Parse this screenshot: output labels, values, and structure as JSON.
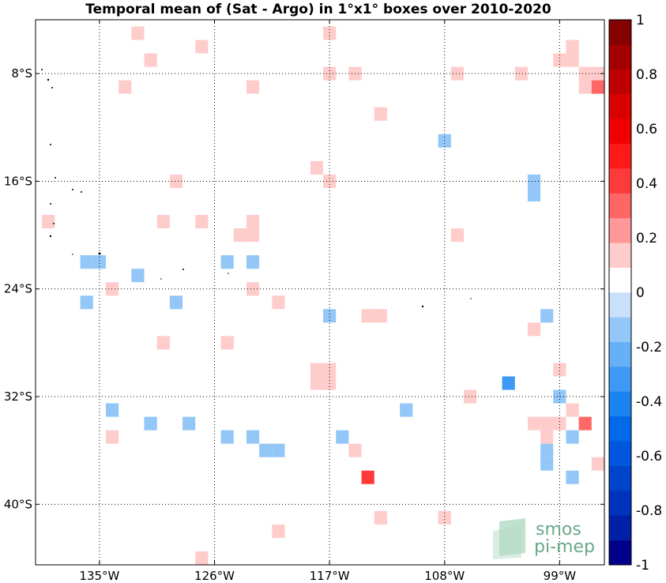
{
  "chart_data": {
    "type": "heatmap",
    "title": "Temporal mean of (Sat - Argo) in 1°x1° boxes over 2010-2020",
    "x_ticks": [
      {
        "value": -135,
        "label": "135°W"
      },
      {
        "value": -126,
        "label": "126°W"
      },
      {
        "value": -117,
        "label": "117°W"
      },
      {
        "value": -108,
        "label": "108°W"
      },
      {
        "value": -99,
        "label": "99°W"
      }
    ],
    "y_ticks": [
      {
        "value": -8,
        "label": "8°S"
      },
      {
        "value": -16,
        "label": "16°S"
      },
      {
        "value": -24,
        "label": "24°S"
      },
      {
        "value": -32,
        "label": "32°S"
      },
      {
        "value": -40,
        "label": "40°S"
      }
    ],
    "xlim": [
      -140,
      -95.5
    ],
    "ylim": [
      -44.5,
      -4
    ],
    "grid": true,
    "colorbar": {
      "range": [
        -1,
        1
      ],
      "ticks": [
        {
          "value": 1,
          "label": "1"
        },
        {
          "value": 0.8,
          "label": "0.8"
        },
        {
          "value": 0.6,
          "label": "0.6"
        },
        {
          "value": 0.4,
          "label": "0.4"
        },
        {
          "value": 0.2,
          "label": "0.2"
        },
        {
          "value": 0,
          "label": "0"
        },
        {
          "value": -0.2,
          "label": "-0.2"
        },
        {
          "value": -0.4,
          "label": "-0.4"
        },
        {
          "value": -0.6,
          "label": "-0.6"
        },
        {
          "value": -0.8,
          "label": "-0.8"
        },
        {
          "value": -1,
          "label": "-1"
        }
      ],
      "colors": [
        "#00008b",
        "#0020a6",
        "#0033bb",
        "#0044cc",
        "#0057dd",
        "#006ae8",
        "#1a84f0",
        "#3d99f5",
        "#66b0f7",
        "#93c7f7",
        "#c8e0f9",
        "#ffffff",
        "#ffcccc",
        "#ff9999",
        "#ff6666",
        "#ff3a3a",
        "#ff1a1a",
        "#f00000",
        "#d90000",
        "#bf0000",
        "#a30000",
        "#850000"
      ]
    },
    "cells": [
      {
        "lon": -132,
        "lat": -5,
        "value": 0.15
      },
      {
        "lon": -127,
        "lat": -6,
        "value": 0.15
      },
      {
        "lon": -117,
        "lat": -5,
        "value": 0.15
      },
      {
        "lon": -131,
        "lat": -7,
        "value": 0.15
      },
      {
        "lon": -98,
        "lat": -6,
        "value": 0.15
      },
      {
        "lon": -99,
        "lat": -7,
        "value": 0.15
      },
      {
        "lon": -98,
        "lat": -7,
        "value": 0.15
      },
      {
        "lon": -133,
        "lat": -9,
        "value": 0.15
      },
      {
        "lon": -123,
        "lat": -9,
        "value": 0.15
      },
      {
        "lon": -117,
        "lat": -8,
        "value": 0.15
      },
      {
        "lon": -115,
        "lat": -8,
        "value": 0.15
      },
      {
        "lon": -107,
        "lat": -8,
        "value": 0.15
      },
      {
        "lon": -102,
        "lat": -8,
        "value": 0.15
      },
      {
        "lon": -96,
        "lat": -8,
        "value": 0.15
      },
      {
        "lon": -97,
        "lat": -8,
        "value": 0.15
      },
      {
        "lon": -97,
        "lat": -9,
        "value": 0.15
      },
      {
        "lon": -96,
        "lat": -9,
        "value": 0.3
      },
      {
        "lon": -113,
        "lat": -11,
        "value": 0.15
      },
      {
        "lon": -108,
        "lat": -13,
        "value": -0.15
      },
      {
        "lon": -118,
        "lat": -15,
        "value": 0.15
      },
      {
        "lon": -117,
        "lat": -16,
        "value": 0.15
      },
      {
        "lon": -129,
        "lat": -16,
        "value": 0.15
      },
      {
        "lon": -101,
        "lat": -16,
        "value": -0.15
      },
      {
        "lon": -101,
        "lat": -17,
        "value": -0.15
      },
      {
        "lon": -139,
        "lat": -19,
        "value": 0.15
      },
      {
        "lon": -130,
        "lat": -19,
        "value": 0.15
      },
      {
        "lon": -127,
        "lat": -19,
        "value": 0.15
      },
      {
        "lon": -123,
        "lat": -19,
        "value": 0.15
      },
      {
        "lon": -124,
        "lat": -20,
        "value": 0.15
      },
      {
        "lon": -123,
        "lat": -20,
        "value": 0.15
      },
      {
        "lon": -107,
        "lat": -20,
        "value": 0.15
      },
      {
        "lon": -136,
        "lat": -22,
        "value": -0.15
      },
      {
        "lon": -135,
        "lat": -22,
        "value": -0.15
      },
      {
        "lon": -125,
        "lat": -22,
        "value": -0.15
      },
      {
        "lon": -123,
        "lat": -22,
        "value": -0.15
      },
      {
        "lon": -132,
        "lat": -23,
        "value": -0.15
      },
      {
        "lon": -134,
        "lat": -24,
        "value": 0.15
      },
      {
        "lon": -123,
        "lat": -24,
        "value": 0.15
      },
      {
        "lon": -136,
        "lat": -25,
        "value": -0.15
      },
      {
        "lon": -129,
        "lat": -25,
        "value": -0.15
      },
      {
        "lon": -121,
        "lat": -25,
        "value": 0.15
      },
      {
        "lon": -117,
        "lat": -26,
        "value": -0.15
      },
      {
        "lon": -114,
        "lat": -26,
        "value": 0.15
      },
      {
        "lon": -113,
        "lat": -26,
        "value": 0.15
      },
      {
        "lon": -100,
        "lat": -26,
        "value": -0.15
      },
      {
        "lon": -101,
        "lat": -27,
        "value": 0.15
      },
      {
        "lon": -130,
        "lat": -28,
        "value": 0.15
      },
      {
        "lon": -125,
        "lat": -28,
        "value": 0.15
      },
      {
        "lon": -118,
        "lat": -30,
        "value": 0.15
      },
      {
        "lon": -117,
        "lat": -30,
        "value": 0.15
      },
      {
        "lon": -118,
        "lat": -31,
        "value": 0.15
      },
      {
        "lon": -117,
        "lat": -31,
        "value": 0.15
      },
      {
        "lon": -99,
        "lat": -30,
        "value": 0.15
      },
      {
        "lon": -103,
        "lat": -31,
        "value": -0.35
      },
      {
        "lon": -99,
        "lat": -32,
        "value": -0.15
      },
      {
        "lon": -106,
        "lat": -32,
        "value": 0.15
      },
      {
        "lon": -134,
        "lat": -33,
        "value": -0.15
      },
      {
        "lon": -111,
        "lat": -33,
        "value": -0.15
      },
      {
        "lon": -98,
        "lat": -33,
        "value": 0.15
      },
      {
        "lon": -131,
        "lat": -34,
        "value": -0.15
      },
      {
        "lon": -128,
        "lat": -34,
        "value": -0.15
      },
      {
        "lon": -101,
        "lat": -34,
        "value": 0.15
      },
      {
        "lon": -100,
        "lat": -34,
        "value": 0.15
      },
      {
        "lon": -99,
        "lat": -34,
        "value": 0.15
      },
      {
        "lon": -97,
        "lat": -34,
        "value": 0.35
      },
      {
        "lon": -134,
        "lat": -35,
        "value": 0.15
      },
      {
        "lon": -125,
        "lat": -35,
        "value": -0.15
      },
      {
        "lon": -123,
        "lat": -35,
        "value": -0.15
      },
      {
        "lon": -116,
        "lat": -35,
        "value": -0.15
      },
      {
        "lon": -100,
        "lat": -35,
        "value": 0.15
      },
      {
        "lon": -98,
        "lat": -35,
        "value": -0.15
      },
      {
        "lon": -122,
        "lat": -36,
        "value": -0.15
      },
      {
        "lon": -121,
        "lat": -36,
        "value": -0.15
      },
      {
        "lon": -115,
        "lat": -36,
        "value": 0.15
      },
      {
        "lon": -100,
        "lat": -36,
        "value": -0.15
      },
      {
        "lon": -100,
        "lat": -37,
        "value": -0.15
      },
      {
        "lon": -96,
        "lat": -37,
        "value": 0.15
      },
      {
        "lon": -114,
        "lat": -38,
        "value": 0.45
      },
      {
        "lon": -98,
        "lat": -38,
        "value": -0.15
      },
      {
        "lon": -113,
        "lat": -41,
        "value": 0.15
      },
      {
        "lon": -108,
        "lat": -41,
        "value": 0.15
      },
      {
        "lon": -121,
        "lat": -42,
        "value": 0.15
      },
      {
        "lon": -127,
        "lat": -44,
        "value": 0.15
      }
    ]
  },
  "logo": {
    "line1": "smos",
    "line2": "pi-mep"
  }
}
